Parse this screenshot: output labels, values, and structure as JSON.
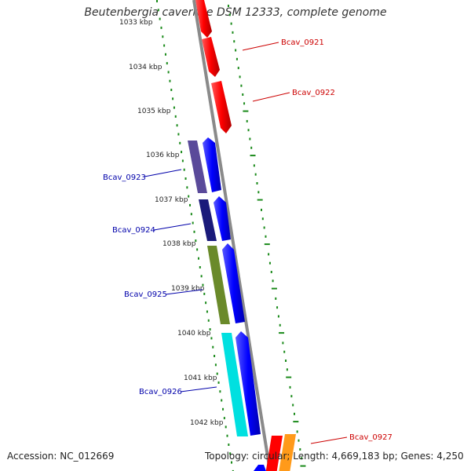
{
  "title": "Beutenbergia cavernae DSM 12333, complete genome",
  "footer": {
    "accession": "Accession: NC_012669",
    "summary": "Topology: circular; Length: 4,669,183 bp; Genes: 4,250"
  },
  "ruler_ticks": [
    {
      "label": "1033 kbp"
    },
    {
      "label": "1034 kbp"
    },
    {
      "label": "1035 kbp"
    },
    {
      "label": "1036 kbp"
    },
    {
      "label": "1037 kbp"
    },
    {
      "label": "1038 kbp"
    },
    {
      "label": "1039 kbp"
    },
    {
      "label": "1040 kbp"
    },
    {
      "label": "1041 kbp"
    },
    {
      "label": "1042 kbp"
    }
  ],
  "genes_forward": [
    {
      "label": "Bcav_0921",
      "color": "#cc0000"
    },
    {
      "label": "Bcav_0922",
      "color": "#cc0000"
    },
    {
      "label": "Bcav_0927",
      "color": "#cc0000"
    }
  ],
  "genes_reverse": [
    {
      "label": "Bcav_0923",
      "color": "#0000aa"
    },
    {
      "label": "Bcav_0924",
      "color": "#0000aa"
    },
    {
      "label": "Bcav_0925",
      "color": "#0000aa"
    },
    {
      "label": "Bcav_0926",
      "color": "#0000aa"
    }
  ],
  "colors": {
    "backbone": "#8a8a8a",
    "tick": "#1a8a1a",
    "forward_gene": "#ff0000",
    "reverse_gene": "#0000ff",
    "cog_purple": "#5a4a9a",
    "cog_navy": "#1a1a7a",
    "cog_olive": "#6a8a2a",
    "cog_cyan": "#00e0e0",
    "cog_orange": "#ff9a1a"
  }
}
